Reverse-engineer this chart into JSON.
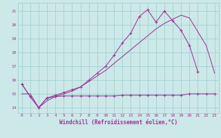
{
  "xlabel": "Windchill (Refroidissement éolien,°C)",
  "bg_color": "#cce8e8",
  "grid_color": "#99cccc",
  "line_color": "#993399",
  "xlim": [
    -0.5,
    23.5
  ],
  "ylim": [
    13.6,
    21.6
  ],
  "yticks": [
    14,
    15,
    16,
    17,
    18,
    19,
    20,
    21
  ],
  "xticks": [
    0,
    1,
    2,
    3,
    4,
    5,
    6,
    7,
    8,
    9,
    10,
    11,
    12,
    13,
    14,
    15,
    16,
    17,
    18,
    19,
    20,
    21,
    22,
    23
  ],
  "line_flat_x": [
    0,
    1,
    2,
    3,
    4,
    5,
    6,
    7,
    8,
    9,
    10,
    11,
    12,
    13,
    14,
    15,
    16,
    17,
    18,
    19,
    20,
    21,
    22,
    23
  ],
  "line_flat_y": [
    15.7,
    14.8,
    14.0,
    14.7,
    14.8,
    14.85,
    14.85,
    14.85,
    14.85,
    14.85,
    14.85,
    14.85,
    14.9,
    14.9,
    14.9,
    14.9,
    14.9,
    14.9,
    14.9,
    14.9,
    15.0,
    15.0,
    15.0,
    15.0
  ],
  "line_peak_x": [
    0,
    1,
    2,
    3,
    4,
    5,
    6,
    7,
    8,
    9,
    10,
    11,
    12,
    13,
    14,
    15,
    16,
    17,
    18,
    19,
    20,
    21
  ],
  "line_peak_y": [
    15.7,
    14.8,
    14.0,
    14.7,
    14.9,
    15.1,
    15.3,
    15.5,
    16.0,
    16.5,
    17.0,
    17.8,
    18.7,
    19.4,
    20.6,
    21.1,
    20.2,
    21.0,
    20.3,
    19.6,
    18.5,
    16.6
  ],
  "line_diag_x": [
    0,
    1,
    2,
    3,
    4,
    5,
    6,
    7,
    8,
    9,
    10,
    11,
    12,
    13,
    14,
    15,
    16,
    17,
    18,
    19,
    20,
    21,
    22,
    23
  ],
  "line_diag_y": [
    15.0,
    15.0,
    14.0,
    14.5,
    14.8,
    15.0,
    15.2,
    15.5,
    15.9,
    16.3,
    16.7,
    17.2,
    17.7,
    18.2,
    18.7,
    19.2,
    19.7,
    20.1,
    20.4,
    20.7,
    20.5,
    19.5,
    18.5,
    16.5
  ]
}
